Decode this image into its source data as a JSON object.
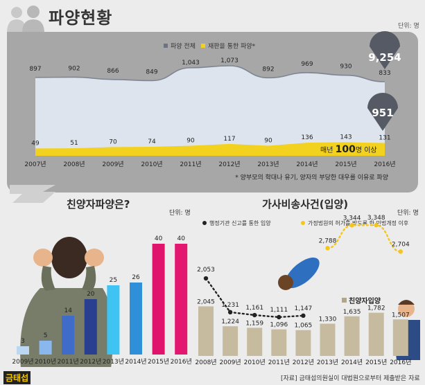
{
  "title": "파양현황",
  "logo_text": "금태섭",
  "source": "[자료] 금태섭의원실이 대법원으로부터 제출받은 자료",
  "chart_data": [
    {
      "type": "area",
      "title": "파양현황",
      "unit": "단위: 명",
      "categories": [
        "2007년",
        "2008년",
        "2009년",
        "2010년",
        "2011년",
        "2012년",
        "2013년",
        "2014년",
        "2015년",
        "2016년"
      ],
      "series": [
        {
          "name": "파양 전체",
          "values": [
            897,
            902,
            866,
            849,
            1043,
            1073,
            892,
            969,
            930,
            833
          ],
          "color": "#7e8592"
        },
        {
          "name": "재판을 통한 파양*",
          "values": [
            49,
            51,
            70,
            74,
            90,
            117,
            90,
            136,
            143,
            131
          ],
          "color": "#f2d11f"
        }
      ],
      "callouts": [
        "9,254",
        "951"
      ],
      "annotation_prefix": "매년 ",
      "annotation_number": "100",
      "annotation_suffix": "명 이상",
      "footnote": "* 양부모의 학대나 유기, 양자의 부당한 대우를 이유로 파양"
    },
    {
      "type": "bar",
      "title": "친양자파양은?",
      "unit": "단위: 명",
      "categories": [
        "2009년",
        "2010년",
        "2011년",
        "2012년",
        "2013년",
        "2014년",
        "2015년",
        "2016년"
      ],
      "values": [
        3,
        5,
        14,
        20,
        25,
        26,
        40,
        40
      ]
    },
    {
      "type": "bar",
      "title": "가사비송사건(입양)",
      "unit": "단위: 명",
      "categories": [
        "2008년",
        "2009년",
        "2010년",
        "2011년",
        "2012년",
        "2013년",
        "2014년",
        "2015년",
        "2016년"
      ],
      "bar_series": {
        "name": "친양자입양",
        "values": [
          2045,
          1224,
          1159,
          1096,
          1065,
          1330,
          1635,
          1782,
          1507
        ],
        "color": "#c7bb9f"
      },
      "line_series": [
        {
          "name": "행정기관 신고를 통한 입양",
          "x": [
            "2008년",
            "2009년",
            "2010년",
            "2011년",
            "2012년"
          ],
          "values": [
            2053,
            1231,
            1161,
            1111,
            1147
          ],
          "color": "#222222"
        },
        {
          "name": "가정법원의 허가를 받도록 한 민법개정 이후",
          "x": [
            "2013년",
            "2014년",
            "2015년",
            "2016년"
          ],
          "values": [
            2788,
            3344,
            3348,
            2704
          ],
          "color": "#f2c61f"
        }
      ]
    }
  ]
}
